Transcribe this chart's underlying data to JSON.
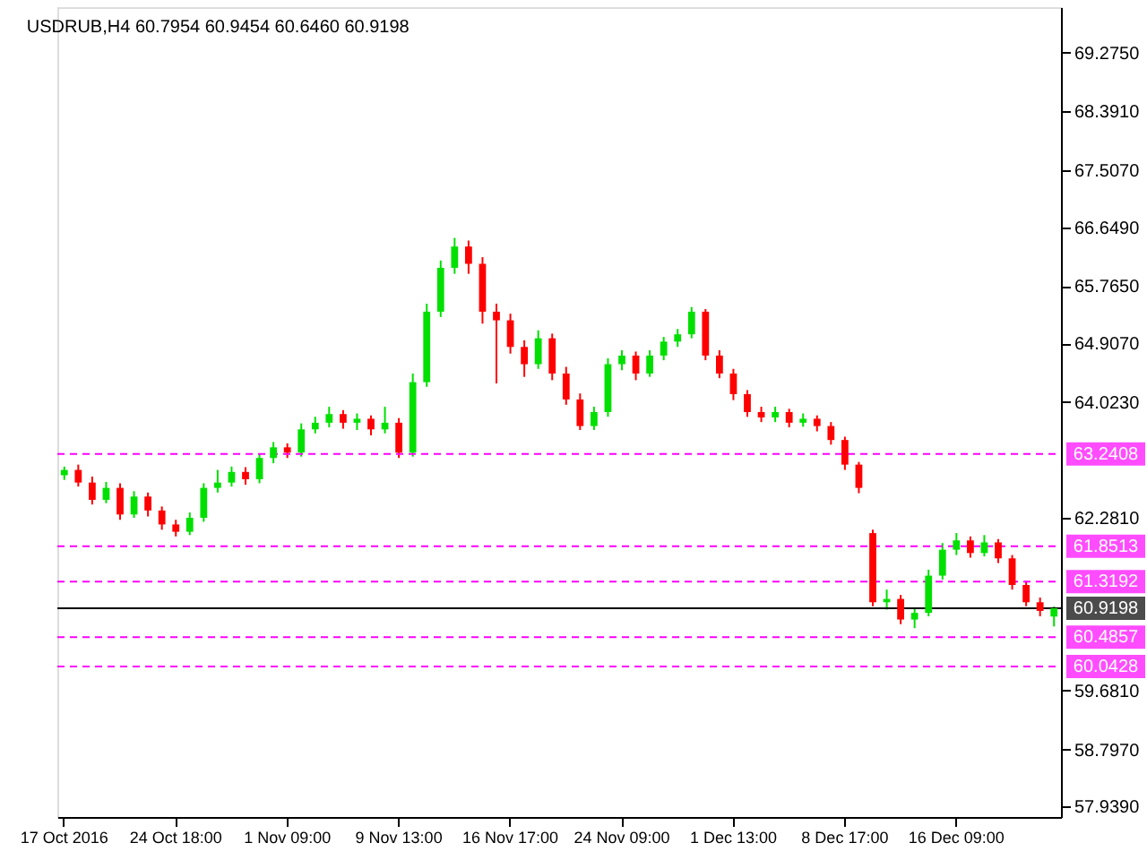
{
  "chart_data": {
    "type": "candlestick",
    "title": "USDRUB,H4  60.7954 60.9454 60.6460 60.9198",
    "categories": [
      "17 Oct 2016",
      null,
      null,
      null,
      null,
      null,
      null,
      null,
      "24 Oct 18:00",
      null,
      null,
      null,
      null,
      null,
      null,
      null,
      "1 Nov 09:00",
      null,
      null,
      null,
      null,
      null,
      null,
      null,
      "9 Nov 13:00",
      null,
      null,
      null,
      null,
      null,
      null,
      null,
      "16 Nov 17:00",
      null,
      null,
      null,
      null,
      null,
      null,
      null,
      "24 Nov 09:00",
      null,
      null,
      null,
      null,
      null,
      null,
      null,
      "1 Dec 13:00",
      null,
      null,
      null,
      null,
      null,
      null,
      null,
      "8 Dec 17:00",
      null,
      null,
      null,
      null,
      null,
      null,
      null,
      "16 Dec 09:00",
      null,
      null,
      null,
      null,
      null,
      null,
      null
    ],
    "ohlc": [
      [
        62.92,
        63.05,
        62.85,
        63.0
      ],
      [
        63.0,
        63.08,
        62.75,
        62.81
      ],
      [
        62.81,
        62.9,
        62.48,
        62.55
      ],
      [
        62.55,
        62.82,
        62.5,
        62.73
      ],
      [
        62.73,
        62.8,
        62.25,
        62.33
      ],
      [
        62.33,
        62.68,
        62.28,
        62.6
      ],
      [
        62.6,
        62.66,
        62.3,
        62.39
      ],
      [
        62.39,
        62.45,
        62.1,
        62.18
      ],
      [
        62.18,
        62.25,
        62.0,
        62.07
      ],
      [
        62.07,
        62.36,
        62.02,
        62.28
      ],
      [
        62.28,
        62.8,
        62.22,
        62.73
      ],
      [
        62.73,
        63.0,
        62.66,
        62.81
      ],
      [
        62.81,
        63.05,
        62.75,
        62.97
      ],
      [
        62.97,
        63.04,
        62.78,
        62.86
      ],
      [
        62.86,
        63.25,
        62.8,
        63.18
      ],
      [
        63.18,
        63.42,
        63.1,
        63.34
      ],
      [
        63.34,
        63.4,
        63.18,
        63.26
      ],
      [
        63.26,
        63.7,
        63.2,
        63.61
      ],
      [
        63.61,
        63.8,
        63.55,
        63.71
      ],
      [
        63.71,
        63.95,
        63.64,
        63.84
      ],
      [
        63.84,
        63.9,
        63.62,
        63.71
      ],
      [
        63.71,
        63.85,
        63.6,
        63.77
      ],
      [
        63.77,
        63.82,
        63.52,
        63.61
      ],
      [
        63.61,
        63.95,
        63.55,
        63.71
      ],
      [
        63.71,
        63.78,
        63.18,
        63.26
      ],
      [
        63.26,
        64.45,
        63.2,
        64.32
      ],
      [
        64.32,
        65.5,
        64.25,
        65.38
      ],
      [
        65.38,
        66.15,
        65.3,
        66.04
      ],
      [
        66.04,
        66.49,
        65.95,
        66.36
      ],
      [
        66.36,
        66.45,
        65.95,
        66.1
      ],
      [
        66.1,
        66.2,
        65.2,
        65.38
      ],
      [
        65.38,
        65.5,
        64.3,
        65.25
      ],
      [
        65.25,
        65.35,
        64.75,
        64.85
      ],
      [
        64.85,
        64.95,
        64.4,
        64.59
      ],
      [
        64.59,
        65.1,
        64.52,
        64.98
      ],
      [
        64.98,
        65.05,
        64.35,
        64.45
      ],
      [
        64.45,
        64.55,
        63.98,
        64.06
      ],
      [
        64.06,
        64.15,
        63.6,
        63.66
      ],
      [
        63.66,
        63.95,
        63.6,
        63.87
      ],
      [
        63.87,
        64.68,
        63.8,
        64.59
      ],
      [
        64.59,
        64.8,
        64.5,
        64.72
      ],
      [
        64.72,
        64.78,
        64.35,
        64.45
      ],
      [
        64.45,
        64.8,
        64.4,
        64.72
      ],
      [
        64.72,
        65.0,
        64.65,
        64.93
      ],
      [
        64.93,
        65.12,
        64.85,
        65.04
      ],
      [
        65.04,
        65.45,
        64.98,
        65.38
      ],
      [
        65.38,
        65.42,
        64.65,
        64.72
      ],
      [
        64.72,
        64.8,
        64.38,
        64.45
      ],
      [
        64.45,
        64.52,
        64.05,
        64.14
      ],
      [
        64.14,
        64.2,
        63.8,
        63.87
      ],
      [
        63.87,
        63.95,
        63.72,
        63.79
      ],
      [
        63.79,
        63.95,
        63.72,
        63.87
      ],
      [
        63.87,
        63.92,
        63.64,
        63.71
      ],
      [
        63.71,
        63.85,
        63.65,
        63.77
      ],
      [
        63.77,
        63.82,
        63.58,
        63.66
      ],
      [
        63.66,
        63.72,
        63.38,
        63.45
      ],
      [
        63.45,
        63.5,
        63.0,
        63.08
      ],
      [
        63.08,
        63.12,
        62.65,
        62.73
      ],
      [
        62.05,
        62.1,
        60.95,
        61.01
      ],
      [
        61.01,
        61.2,
        60.9,
        61.06
      ],
      [
        61.06,
        61.12,
        60.68,
        60.75
      ],
      [
        60.75,
        60.92,
        60.62,
        60.85
      ],
      [
        60.85,
        61.5,
        60.8,
        61.41
      ],
      [
        61.41,
        61.9,
        61.35,
        61.8
      ],
      [
        61.8,
        62.05,
        61.72,
        61.94
      ],
      [
        61.94,
        62.0,
        61.68,
        61.75
      ],
      [
        61.75,
        62.02,
        61.7,
        61.91
      ],
      [
        61.91,
        61.96,
        61.6,
        61.67
      ],
      [
        61.67,
        61.72,
        61.2,
        61.27
      ],
      [
        61.27,
        61.33,
        60.95,
        61.01
      ],
      [
        61.01,
        61.08,
        60.8,
        60.88
      ],
      [
        60.7954,
        60.9454,
        60.646,
        60.9198
      ]
    ],
    "colors": [
      "#00e000",
      "#ff0000",
      "#ff0000",
      "#00e000",
      "#ff0000",
      "#00e000",
      "#ff0000",
      "#ff0000",
      "#ff0000",
      "#00e000",
      "#00e000",
      "#00e000",
      "#00e000",
      "#ff0000",
      "#00e000",
      "#00e000",
      "#ff0000",
      "#00e000",
      "#00e000",
      "#00e000",
      "#ff0000",
      "#00e000",
      "#ff0000",
      "#00e000",
      "#ff0000",
      "#00e000",
      "#00e000",
      "#00e000",
      "#00e000",
      "#ff0000",
      "#ff0000",
      "#ff0000",
      "#ff0000",
      "#ff0000",
      "#00e000",
      "#ff0000",
      "#ff0000",
      "#ff0000",
      "#00e000",
      "#00e000",
      "#00e000",
      "#ff0000",
      "#00e000",
      "#00e000",
      "#00e000",
      "#00e000",
      "#ff0000",
      "#ff0000",
      "#ff0000",
      "#ff0000",
      "#ff0000",
      "#00e000",
      "#ff0000",
      "#00e000",
      "#ff0000",
      "#ff0000",
      "#ff0000",
      "#ff0000",
      "#ff0000",
      "#00e000",
      "#ff0000",
      "#00e000",
      "#00e000",
      "#00e000",
      "#00e000",
      "#ff0000",
      "#00e000",
      "#ff0000",
      "#ff0000",
      "#ff0000",
      "#ff0000",
      "#00e000"
    ],
    "ylim": [
      57.78,
      69.96
    ],
    "yticks": [
      {
        "value": 69.275,
        "label": "69.2750"
      },
      {
        "value": 68.391,
        "label": "68.3910"
      },
      {
        "value": 67.507,
        "label": "67.5070"
      },
      {
        "value": 66.649,
        "label": "66.6490"
      },
      {
        "value": 65.765,
        "label": "65.7650"
      },
      {
        "value": 64.907,
        "label": "64.9070"
      },
      {
        "value": 64.023,
        "label": "64.0230"
      },
      {
        "value": 62.281,
        "label": "62.2810"
      },
      {
        "value": 59.681,
        "label": "59.6810"
      },
      {
        "value": 58.797,
        "label": "58.7970"
      },
      {
        "value": 57.939,
        "label": "57.9390"
      }
    ],
    "ref_lines": [
      {
        "axis": "y",
        "value": 63.2408,
        "label": "63.2408",
        "color": "#ff00ff",
        "line_style": "dashed"
      },
      {
        "axis": "y",
        "value": 61.8513,
        "label": "61.8513",
        "color": "#ff00ff",
        "line_style": "dashed"
      },
      {
        "axis": "y",
        "value": 61.3192,
        "label": "61.3192",
        "color": "#ff00ff",
        "line_style": "dashed"
      },
      {
        "axis": "y",
        "value": 60.9198,
        "label": "60.9198",
        "color": "#000000",
        "line_style": "solid"
      },
      {
        "axis": "y",
        "value": 60.4857,
        "label": "60.4857",
        "color": "#ff00ff",
        "line_style": "dashed"
      },
      {
        "axis": "y",
        "value": 60.0428,
        "label": "60.0428",
        "color": "#ff00ff",
        "line_style": "dashed"
      }
    ],
    "grid": false,
    "legend": false
  }
}
